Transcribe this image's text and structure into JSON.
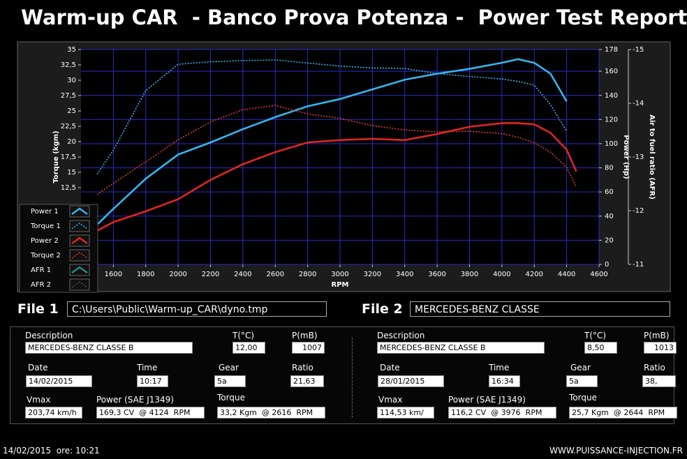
{
  "header": {
    "title": "Warm-up CAR  - Banco Prova Potenza -  Power Test Report"
  },
  "chart_data": {
    "type": "line",
    "xlabel": "RPM",
    "ylabel": "Torque (kgm)",
    "y2label": "Power (Hp)",
    "y3label": "Air to fuel ratio (AFR)",
    "x": [
      1500,
      1600,
      1800,
      2000,
      2200,
      2400,
      2600,
      2800,
      3000,
      3200,
      3400,
      3600,
      3800,
      4000,
      4100,
      4200,
      4300,
      4400,
      4460
    ],
    "xlim": [
      1400,
      4600
    ],
    "xticks": [
      1600,
      1800,
      2000,
      2200,
      2400,
      2600,
      2800,
      3000,
      3200,
      3400,
      3600,
      3800,
      4000,
      4200,
      4400,
      4600
    ],
    "ylim": [
      0,
      35
    ],
    "yticks": [
      {
        "value": 12.5,
        "label": "12,5"
      },
      15,
      {
        "value": 17.5,
        "label": "17,5"
      },
      20,
      {
        "value": 22.5,
        "label": "22,5"
      },
      25,
      {
        "value": 27.5,
        "label": "27,5"
      },
      30,
      {
        "value": 32.5,
        "label": "32,5"
      },
      35
    ],
    "y2lim": [
      0,
      178
    ],
    "y2ticks": [
      0,
      20,
      40,
      60,
      80,
      100,
      120,
      140,
      160,
      178
    ],
    "y3lim": [
      -11,
      -15
    ],
    "y3ticks": [
      -15,
      -14,
      -13,
      -12,
      -11
    ],
    "grid": true,
    "grid_color": "#2c2cc8",
    "legend": "lower-left",
    "series": [
      {
        "name": "Power 1",
        "color": "#35b6ef",
        "style": "solid",
        "axis": "y2",
        "values": [
          33,
          46,
          71,
          91,
          101,
          112,
          122,
          131,
          137,
          145,
          153,
          158,
          162,
          167,
          170,
          167,
          158,
          135,
          null
        ]
      },
      {
        "name": "Torque 1",
        "color": "#35b6ef",
        "style": "dotted",
        "values": [
          14.7,
          18.6,
          28.3,
          32.6,
          33.0,
          33.2,
          33.3,
          32.8,
          32.3,
          32.0,
          31.9,
          31.1,
          30.6,
          30.2,
          29.8,
          29.2,
          26.0,
          21.7,
          null
        ]
      },
      {
        "name": "Power 2",
        "color": "#e02424",
        "style": "solid",
        "axis": "y2",
        "values": [
          28,
          35,
          44,
          54,
          70,
          83,
          93,
          101,
          103,
          104,
          103,
          108,
          114,
          117,
          117,
          116,
          109,
          95,
          77
        ]
      },
      {
        "name": "Torque 2",
        "color": "#d8402a",
        "style": "dotted",
        "values": [
          11.4,
          13.2,
          16.7,
          20.3,
          23.2,
          25.2,
          25.9,
          24.5,
          23.8,
          22.6,
          21.9,
          21.6,
          21.7,
          21.3,
          20.7,
          19.8,
          18.3,
          15.8,
          12.6
        ]
      },
      {
        "name": "AFR 1",
        "color": "#2a8a8a",
        "style": "solid",
        "axis": "y3",
        "values": [
          null,
          null,
          null,
          null,
          null,
          null,
          null,
          null,
          null,
          null,
          null,
          null,
          null,
          null,
          null,
          null,
          null,
          null,
          null
        ]
      },
      {
        "name": "AFR 2",
        "color": "#6a5040",
        "style": "dotted",
        "axis": "y3",
        "values": [
          null,
          null,
          null,
          null,
          null,
          null,
          null,
          null,
          null,
          null,
          null,
          null,
          null,
          null,
          null,
          null,
          null,
          null,
          null
        ]
      }
    ]
  },
  "files": [
    {
      "label": "File 1",
      "path": "C:\\Users\\Public\\Warm-up_CAR\\dyno.tmp"
    },
    {
      "label": "File 2",
      "path": "MERCEDES-BENZ CLASSE"
    }
  ],
  "panels": [
    {
      "fields": [
        {
          "label": "Description",
          "value": "MERCEDES-BENZ CLASSE B"
        },
        {
          "label": "T(°C)",
          "value": "12,00"
        },
        {
          "label": "P(mB)",
          "value": "1007"
        },
        {
          "label": "Date",
          "value": "14/02/2015"
        },
        {
          "label": "Time",
          "value": "10:17"
        },
        {
          "label": "Gear",
          "value": "5a"
        },
        {
          "label": "Ratio",
          "value": "21,63"
        },
        {
          "label": "Vmax",
          "value": "203,74 km/h"
        },
        {
          "label": "Power (SAE J1349)",
          "value": "169,3 CV  @ 4124  RPM"
        },
        {
          "label": "Torque",
          "value": "33,2 Kgm  @ 2616  RPM"
        }
      ]
    },
    {
      "fields": [
        {
          "label": "Description",
          "value": "MERCEDES-BENZ CLASSE B"
        },
        {
          "label": "T(°C)",
          "value": "8,50"
        },
        {
          "label": "P(mB)",
          "value": "1013"
        },
        {
          "label": "Date",
          "value": "28/01/2015"
        },
        {
          "label": "Time",
          "value": "16:34"
        },
        {
          "label": "Gear",
          "value": "5a"
        },
        {
          "label": "Ratio",
          "value": "38,"
        },
        {
          "label": "Vmax",
          "value": "114,53 km/"
        },
        {
          "label": "Power (SAE J1349)",
          "value": "116,2 CV  @ 3976  RPM"
        },
        {
          "label": "Torque",
          "value": "25,7 Kgm  @ 2644  RPM"
        }
      ]
    }
  ],
  "footer": {
    "date": "14/02/2015  ore: 10:21",
    "url": "WWW.PUISSANCE-INJECTION.FR"
  }
}
